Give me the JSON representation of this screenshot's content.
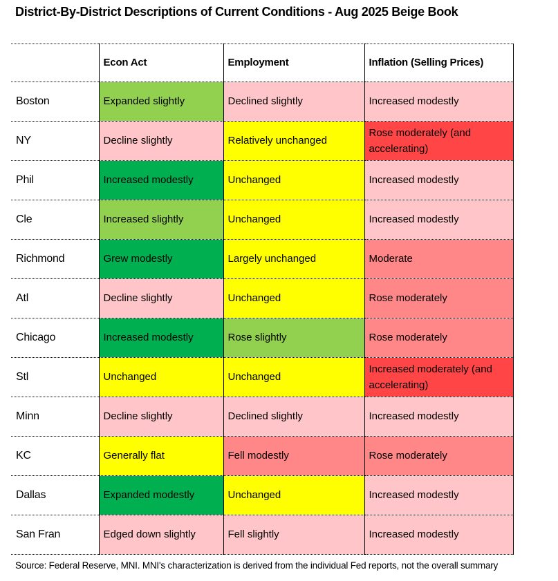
{
  "chart_data": {
    "type": "table",
    "title": "District-By-District Descriptions of Current Conditions - Aug 2025 Beige Book",
    "columns": [
      "",
      "Econ Act",
      "Employment",
      "Inflation (Selling Prices)"
    ],
    "palette": {
      "green_strong": "#00B050",
      "green_mild": "#92D050",
      "yellow": "#FFFF00",
      "pink_mild": "#FFC5C8",
      "red_medium": "#FF8787",
      "red_strong": "#FF4545",
      "white": "#FFFFFF"
    },
    "rows": [
      {
        "district": "Boston",
        "cells": [
          {
            "text": "Expanded slightly",
            "color": "green_mild"
          },
          {
            "text": "Declined slightly",
            "color": "pink_mild"
          },
          {
            "text": "Increased modestly",
            "color": "pink_mild"
          }
        ]
      },
      {
        "district": "NY",
        "cells": [
          {
            "text": "Decline slightly",
            "color": "pink_mild"
          },
          {
            "text": "Relatively unchanged",
            "color": "yellow"
          },
          {
            "text": "Rose moderately (and accelerating)",
            "color": "red_strong"
          }
        ]
      },
      {
        "district": "Phil",
        "cells": [
          {
            "text": "Increased modestly",
            "color": "green_strong"
          },
          {
            "text": "Unchanged",
            "color": "yellow"
          },
          {
            "text": "Increased modestly",
            "color": "pink_mild"
          }
        ]
      },
      {
        "district": "Cle",
        "cells": [
          {
            "text": "Increased slightly",
            "color": "green_mild"
          },
          {
            "text": "Unchanged",
            "color": "yellow"
          },
          {
            "text": "Increased modestly",
            "color": "pink_mild"
          }
        ]
      },
      {
        "district": "Richmond",
        "cells": [
          {
            "text": "Grew modestly",
            "color": "green_strong"
          },
          {
            "text": "Largely unchanged",
            "color": "yellow"
          },
          {
            "text": "Moderate",
            "color": "red_medium"
          }
        ]
      },
      {
        "district": "Atl",
        "cells": [
          {
            "text": "Decline slightly",
            "color": "pink_mild"
          },
          {
            "text": "Unchanged",
            "color": "yellow"
          },
          {
            "text": "Rose moderately",
            "color": "red_medium"
          }
        ]
      },
      {
        "district": "Chicago",
        "cells": [
          {
            "text": "Increased modestly",
            "color": "green_strong"
          },
          {
            "text": "Rose slightly",
            "color": "green_mild"
          },
          {
            "text": "Rose moderately",
            "color": "red_medium"
          }
        ]
      },
      {
        "district": "Stl",
        "cells": [
          {
            "text": "Unchanged",
            "color": "yellow"
          },
          {
            "text": "Unchanged",
            "color": "yellow"
          },
          {
            "text": "Increased moderately (and accelerating)",
            "color": "red_strong"
          }
        ]
      },
      {
        "district": "Minn",
        "cells": [
          {
            "text": "Decline slightly",
            "color": "pink_mild"
          },
          {
            "text": "Declined slightly",
            "color": "pink_mild"
          },
          {
            "text": "Increased modestly",
            "color": "pink_mild"
          }
        ]
      },
      {
        "district": "KC",
        "cells": [
          {
            "text": "Generally flat",
            "color": "yellow"
          },
          {
            "text": "Fell modestly",
            "color": "red_medium"
          },
          {
            "text": "Rose moderately",
            "color": "red_medium"
          }
        ]
      },
      {
        "district": "Dallas",
        "cells": [
          {
            "text": "Expanded modestly",
            "color": "green_strong"
          },
          {
            "text": "Unchanged",
            "color": "yellow"
          },
          {
            "text": "Increased modestly",
            "color": "pink_mild"
          }
        ]
      },
      {
        "district": "San Fran",
        "cells": [
          {
            "text": "Edged down slightly",
            "color": "pink_mild"
          },
          {
            "text": "Fell slightly",
            "color": "pink_mild"
          },
          {
            "text": "Increased modestly",
            "color": "pink_mild"
          }
        ]
      }
    ],
    "source": "Source: Federal Reserve, MNI. MNI's characterization is derived from the individual Fed reports, not the overall summary"
  }
}
